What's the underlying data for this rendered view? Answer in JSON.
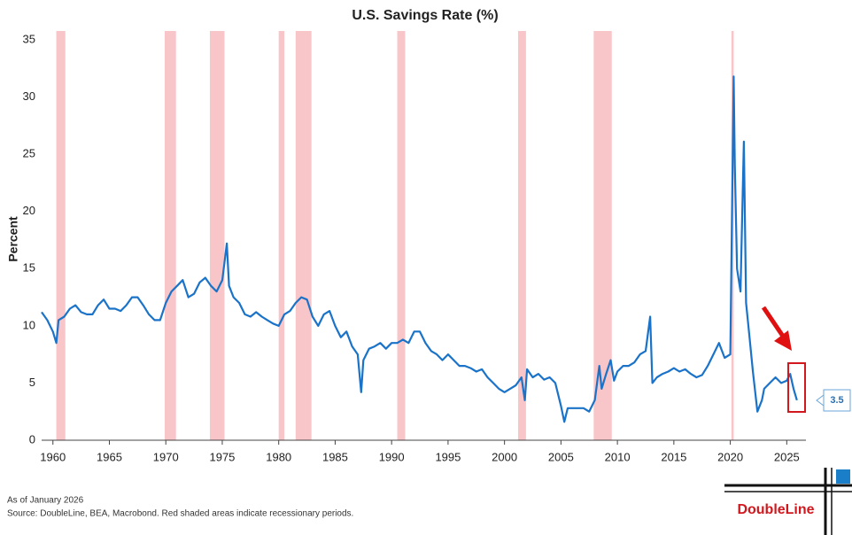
{
  "chart_data": {
    "type": "line",
    "title": "U.S. Savings Rate (%)",
    "y_label": "Percent",
    "xlim": [
      1959,
      2026.7
    ],
    "ylim": [
      0,
      35
    ],
    "xticks": [
      1960,
      1965,
      1970,
      1975,
      1980,
      1985,
      1990,
      1995,
      2000,
      2005,
      2010,
      2015,
      2020,
      2025
    ],
    "yticks": [
      0,
      5,
      10,
      15,
      20,
      25,
      30,
      35
    ],
    "recessions": [
      [
        1960.3,
        1961.1
      ],
      [
        1969.9,
        1970.9
      ],
      [
        1973.9,
        1975.2
      ],
      [
        1980.0,
        1980.5
      ],
      [
        1981.5,
        1982.9
      ],
      [
        1990.5,
        1991.2
      ],
      [
        2001.2,
        2001.9
      ],
      [
        2007.9,
        2009.5
      ],
      [
        2020.1,
        2020.3
      ]
    ],
    "recession_color": "#f8c5c8",
    "series": [
      {
        "name": "Savings rate",
        "color": "#1a73c8",
        "x": [
          1959,
          1959.5,
          1960,
          1960.3,
          1960.5,
          1961,
          1961.5,
          1962,
          1962.5,
          1963,
          1963.5,
          1964,
          1964.5,
          1965,
          1965.5,
          1966,
          1966.5,
          1967,
          1967.5,
          1968,
          1968.5,
          1969,
          1969.5,
          1970,
          1970.5,
          1971,
          1971.5,
          1972,
          1972.5,
          1973,
          1973.5,
          1974,
          1974.5,
          1975,
          1975.4,
          1975.6,
          1976,
          1976.5,
          1977,
          1977.5,
          1978,
          1978.5,
          1979,
          1979.5,
          1980,
          1980.5,
          1981,
          1981.5,
          1982,
          1982.5,
          1983,
          1983.5,
          1984,
          1984.5,
          1985,
          1985.5,
          1986,
          1986.5,
          1987,
          1987.3,
          1987.5,
          1988,
          1988.5,
          1989,
          1989.5,
          1990,
          1990.5,
          1991,
          1991.5,
          1992,
          1992.5,
          1993,
          1993.5,
          1994,
          1994.5,
          1995,
          1995.5,
          1996,
          1996.5,
          1997,
          1997.5,
          1998,
          1998.5,
          1999,
          1999.5,
          2000,
          2000.5,
          2001,
          2001.5,
          2001.8,
          2002,
          2002.5,
          2003,
          2003.5,
          2004,
          2004.5,
          2005,
          2005.3,
          2005.6,
          2006,
          2006.5,
          2007,
          2007.5,
          2008,
          2008.4,
          2008.6,
          2009,
          2009.4,
          2009.7,
          2010,
          2010.5,
          2011,
          2011.5,
          2012,
          2012.5,
          2012.9,
          2013.1,
          2013.5,
          2014,
          2014.5,
          2015,
          2015.5,
          2016,
          2016.5,
          2017,
          2017.5,
          2018,
          2018.5,
          2019,
          2019.5,
          2020,
          2020.3,
          2020.4,
          2020.6,
          2020.9,
          2021.2,
          2021.4,
          2021.7,
          2022,
          2022.4,
          2022.8,
          2023,
          2023.5,
          2024,
          2024.5,
          2025,
          2025.3,
          2025.6,
          2025.9
        ],
        "values": [
          11.2,
          10.5,
          9.5,
          8.5,
          10.5,
          10.8,
          11.5,
          11.8,
          11.2,
          11.0,
          11.0,
          11.8,
          12.3,
          11.5,
          11.5,
          11.3,
          11.8,
          12.5,
          12.5,
          11.8,
          11.0,
          10.5,
          10.5,
          12.0,
          13.0,
          13.5,
          14.0,
          12.5,
          12.8,
          13.8,
          14.2,
          13.5,
          13.0,
          14.0,
          17.2,
          13.5,
          12.5,
          12.0,
          11.0,
          10.8,
          11.2,
          10.8,
          10.5,
          10.2,
          10.0,
          11.0,
          11.3,
          12.0,
          12.5,
          12.3,
          10.8,
          10.0,
          11.0,
          11.3,
          10.0,
          9.0,
          9.5,
          8.2,
          7.5,
          4.2,
          7.0,
          8.0,
          8.2,
          8.5,
          8.0,
          8.5,
          8.5,
          8.8,
          8.5,
          9.5,
          9.5,
          8.5,
          7.8,
          7.5,
          7.0,
          7.5,
          7.0,
          6.5,
          6.5,
          6.3,
          6.0,
          6.2,
          5.5,
          5.0,
          4.5,
          4.2,
          4.5,
          4.8,
          5.5,
          3.5,
          6.2,
          5.5,
          5.8,
          5.3,
          5.5,
          5.0,
          3.0,
          1.6,
          2.8,
          2.8,
          2.8,
          2.8,
          2.5,
          3.5,
          6.5,
          4.5,
          5.8,
          7.0,
          5.2,
          6.0,
          6.5,
          6.5,
          6.8,
          7.5,
          7.8,
          10.8,
          5.0,
          5.5,
          5.8,
          6.0,
          6.3,
          6.0,
          6.2,
          5.8,
          5.5,
          5.7,
          6.5,
          7.5,
          8.5,
          7.2,
          7.5,
          31.8,
          24.0,
          15.0,
          13.0,
          26.1,
          12.0,
          9.0,
          6.0,
          2.5,
          3.5,
          4.5,
          5.0,
          5.5,
          5.0,
          5.2,
          5.8,
          4.5,
          3.5
        ]
      }
    ],
    "note": "As of January 2026",
    "source": "Source: DoubleLine, BEA, Macrobond. Red shaded areas indicate recessionary periods.",
    "logo": "DoubleLine"
  }
}
